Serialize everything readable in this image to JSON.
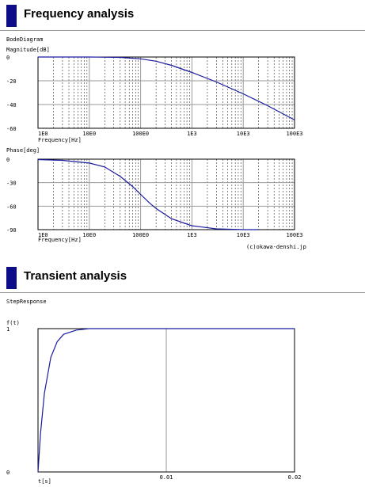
{
  "frequency": {
    "heading": "Frequency analysis",
    "diagram_label": "BodeDiagram"
  },
  "transient": {
    "heading": "Transient analysis",
    "response_label": "StepResponse"
  },
  "credit": "(c)okawa-denshi.jp",
  "colors": {
    "accent": "#0d0d8a",
    "curve": "#1a1aa0",
    "grid": "#9a9a9a"
  },
  "chart_data": [
    {
      "type": "line",
      "ylabel": "Magnitude[dB]",
      "xlabel": "Frequency[Hz]",
      "x_scale": "log",
      "xlim": [
        1,
        100000
      ],
      "ylim": [
        -60,
        0
      ],
      "x_tick_labels": [
        "1E0",
        "10E0",
        "100E0",
        "1E3",
        "10E3",
        "100E3"
      ],
      "y_tick_labels": [
        "0",
        "-20",
        "-40",
        "-60"
      ],
      "series": [
        {
          "x": [
            1,
            10,
            40,
            100,
            200,
            400,
            1000,
            3000,
            10000,
            30000,
            100000
          ],
          "y": [
            0,
            0,
            -0.3,
            -1.5,
            -3.5,
            -7,
            -13,
            -21,
            -31,
            -41,
            -53
          ]
        }
      ]
    },
    {
      "type": "line",
      "ylabel": "Phase[deg]",
      "xlabel": "Frequency[Hz]",
      "x_scale": "log",
      "xlim": [
        1,
        100000
      ],
      "ylim": [
        -90,
        0
      ],
      "x_tick_labels": [
        "1E0",
        "10E0",
        "100E0",
        "1E3",
        "10E3",
        "100E3"
      ],
      "y_tick_labels": [
        "0",
        "-30",
        "-60",
        "-90"
      ],
      "series": [
        {
          "x": [
            1,
            3,
            10,
            20,
            40,
            70,
            100,
            150,
            200,
            400,
            1000,
            3000,
            10000,
            20000
          ],
          "y": [
            -0.5,
            -1.5,
            -5,
            -10,
            -22,
            -35,
            -45,
            -56,
            -63,
            -76,
            -85,
            -89,
            -90,
            -90
          ]
        }
      ]
    },
    {
      "type": "line",
      "ylabel": "f(t)",
      "xlabel": "t[s]",
      "xlim": [
        0,
        0.02
      ],
      "ylim": [
        0,
        1
      ],
      "x_tick_labels": [
        "0",
        "0.01",
        "0.02"
      ],
      "y_tick_labels": [
        "1",
        "0"
      ],
      "series": [
        {
          "x": [
            0,
            0.0002,
            0.0005,
            0.001,
            0.0015,
            0.002,
            0.003,
            0.004,
            0.005,
            0.02
          ],
          "y": [
            0,
            0.27,
            0.55,
            0.8,
            0.91,
            0.96,
            0.99,
            1.0,
            1.0,
            1.0
          ]
        }
      ]
    }
  ]
}
